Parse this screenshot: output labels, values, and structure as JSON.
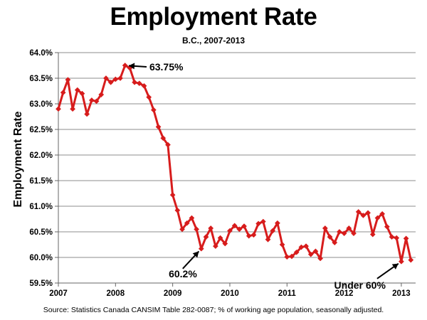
{
  "chart_data": {
    "type": "line",
    "title": "Employment Rate",
    "subtitle": "B.C., 2007-2013",
    "ylabel": "Employment Rate",
    "xlabel": "",
    "ylim": [
      59.5,
      64.0
    ],
    "xlim": [
      2007,
      2013.25
    ],
    "y_ticks": [
      "59.5%",
      "60.0%",
      "60.5%",
      "61.0%",
      "61.5%",
      "62.0%",
      "62.5%",
      "63.0%",
      "63.5%",
      "64.0%"
    ],
    "x_ticks": [
      "2007",
      "2008",
      "2009",
      "2010",
      "2011",
      "2012",
      "2013"
    ],
    "grid": "horizontal",
    "line_color": "#d71c1c",
    "marker": "diamond",
    "series": [
      {
        "x_start": 2007,
        "x_step_months": 1,
        "values": [
          62.9,
          63.22,
          63.47,
          62.9,
          63.27,
          63.2,
          62.8,
          63.07,
          63.05,
          63.18,
          63.5,
          63.42,
          63.48,
          63.5,
          63.75,
          63.7,
          63.42,
          63.4,
          63.35,
          63.13,
          62.88,
          62.55,
          62.33,
          62.2,
          61.22,
          60.92,
          60.55,
          60.67,
          60.77,
          60.55,
          60.17,
          60.4,
          60.57,
          60.22,
          60.38,
          60.27,
          60.52,
          60.62,
          60.55,
          60.61,
          60.42,
          60.44,
          60.66,
          60.7,
          60.35,
          60.52,
          60.67,
          60.25,
          60.01,
          60.02,
          60.1,
          60.2,
          60.22,
          60.06,
          60.12,
          59.98,
          60.57,
          60.4,
          60.29,
          60.5,
          60.47,
          60.57,
          60.47,
          60.89,
          60.82,
          60.87,
          60.45,
          60.77,
          60.85,
          60.6,
          60.4,
          60.38,
          59.92,
          60.37,
          59.95
        ]
      }
    ],
    "annotations": [
      {
        "text": "63.75%",
        "x": 2008.17,
        "y": 63.75
      },
      {
        "text": "60.2%",
        "x": 2009.5,
        "y": 60.17
      },
      {
        "text": "Under 60%",
        "x": 2013.0,
        "y": 59.92
      }
    ]
  },
  "source": "Source: Statistics Canada CANSIM Table 282-0087; % of working age population, seasonally adjusted."
}
